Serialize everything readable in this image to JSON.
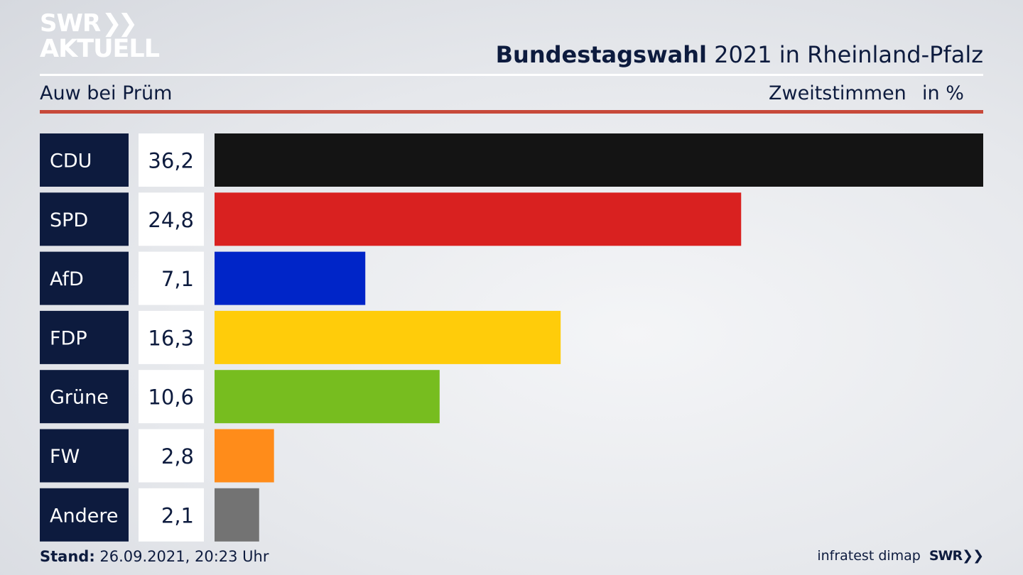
{
  "header": {
    "logo_line1": "SWR",
    "logo_chevrons": "❯❯",
    "logo_line2": "AKTUELL",
    "title_bold": "Bundestagswahl",
    "title_rest": " 2021 in Rheinland-Pfalz",
    "subtitle": "Auw bei Prüm",
    "metric": "Zweitstimmen",
    "unit": "in %"
  },
  "chart_data": {
    "type": "bar",
    "orientation": "horizontal",
    "title": "Bundestagswahl 2021 in Rheinland-Pfalz",
    "subtitle": "Auw bei Prüm",
    "xlabel": "",
    "ylabel": "",
    "xlim": [
      0,
      36.2
    ],
    "categories": [
      "CDU",
      "SPD",
      "AfD",
      "FDP",
      "Grüne",
      "FW",
      "Andere"
    ],
    "values": [
      36.2,
      24.8,
      7.1,
      16.3,
      10.6,
      2.8,
      2.1
    ],
    "value_labels": [
      "36,2",
      "24,8",
      "7,1",
      "16,3",
      "10,6",
      "2,8",
      "2,1"
    ],
    "colors": [
      "#141414",
      "#d92120",
      "#0025c8",
      "#ffcc0a",
      "#77bd1f",
      "#ff8c1a",
      "#737373"
    ],
    "grid": false,
    "legend": "none"
  },
  "footer": {
    "stand_label": "Stand:",
    "stand_value": " 26.09.2021, 20:23 Uhr",
    "source": "infratest dimap",
    "source_logo": "SWR❯❯"
  }
}
